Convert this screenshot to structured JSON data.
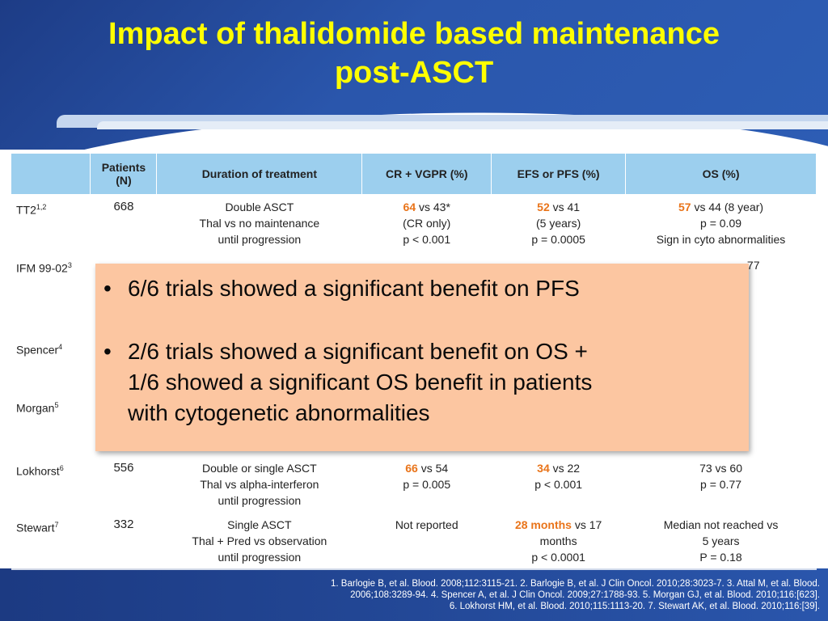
{
  "title": "Impact of thalidomide based maintenance post-ASCT",
  "table": {
    "headers": [
      "",
      "Patients (N)",
      "Duration of treatment",
      "CR + VGPR (%)",
      "EFS or PFS (%)",
      "OS (%)"
    ],
    "rows": [
      {
        "study": "TT2",
        "sup": "1,2",
        "n": "668",
        "duration": [
          "Double ASCT",
          "Thal vs no maintenance",
          "until progression"
        ],
        "cr_hl": "64",
        "cr_rest": " vs 43*",
        "cr_lines": [
          "(CR only)",
          "p < 0.001"
        ],
        "efs_hl": "52",
        "efs_rest": " vs 41",
        "efs_lines": [
          "(5 years)",
          "p = 0.0005"
        ],
        "os_hl": "57",
        "os_rest": " vs 44 (8 year)",
        "os_lines": [
          "p = 0.09",
          "Sign in cyto abnormalities"
        ]
      },
      {
        "study": "IFM 99-02",
        "sup": "3",
        "os_partial": "77"
      },
      {
        "study": "Spencer",
        "sup": "4"
      },
      {
        "study": "Morgan",
        "sup": "5"
      },
      {
        "study": "Lokhorst",
        "sup": "6",
        "n": "556",
        "duration": [
          "Double or single ASCT",
          "Thal vs alpha-interferon",
          "until progression"
        ],
        "cr_hl": "66",
        "cr_rest": " vs 54",
        "cr_lines": [
          "p = 0.005"
        ],
        "efs_hl": "34",
        "efs_rest": " vs 22",
        "efs_lines": [
          "p < 0.001"
        ],
        "os_lines": [
          "73 vs 60",
          "p = 0.77"
        ]
      },
      {
        "study": "Stewart",
        "sup": "7",
        "n": "332",
        "duration": [
          "Single ASCT",
          "Thal + Pred vs observation",
          "until progression"
        ],
        "cr_plain": "Not reported",
        "efs_hl": "28 months",
        "efs_rest": " vs 17",
        "efs_lines": [
          "months",
          "p < 0.0001"
        ],
        "os_lines": [
          "Median not reached vs",
          "5 years",
          "P = 0.18"
        ]
      }
    ]
  },
  "overlay": {
    "bullet1": "6/6 trials showed a significant benefit on PFS",
    "bullet2_lines": [
      "2/6 trials showed a significant benefit on OS +",
      "1/6 showed a significant OS benefit in patients",
      "with cytogenetic abnormalities"
    ]
  },
  "references": [
    "1. Barlogie B, et al. Blood. 2008;112:3115-21. 2. Barlogie B, et al. J Clin Oncol. 2010;28:3023-7. 3. Attal M, et al. Blood.",
    "2006;108:3289-94.  4. Spencer A, et al.  J Clin Oncol. 2009;27:1788-93. 5. Morgan GJ, et al. Blood. 2010;116:[623].",
    "6. Lokhorst HM, et al. Blood. 2010;115:1113-20. 7. Stewart  AK, et al. Blood. 2010;116:[39]."
  ]
}
